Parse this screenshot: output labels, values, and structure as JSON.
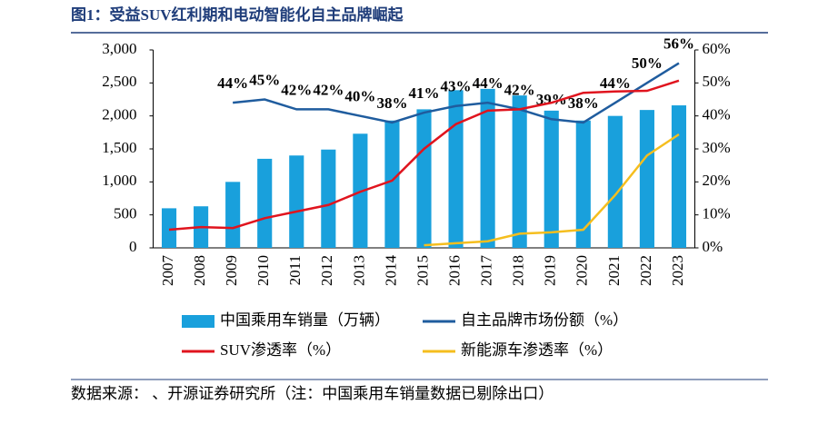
{
  "title": "图1：受益SUV红利期和电动智能化自主品牌崛起",
  "source": "数据来源：      、开源证券研究所（注：中国乘用车销量数据已剔除出口）",
  "chart_data": {
    "type": "bar",
    "categories": [
      "2007",
      "2008",
      "2009",
      "2010",
      "2011",
      "2012",
      "2013",
      "2014",
      "2015",
      "2016",
      "2017",
      "2018",
      "2019",
      "2020",
      "2021",
      "2022",
      "2023"
    ],
    "series": [
      {
        "name": "中国乘用车销量（万辆）",
        "type": "bar",
        "color": "#19a0dc",
        "values": [
          600,
          630,
          1000,
          1350,
          1400,
          1490,
          1730,
          1930,
          2100,
          2390,
          2410,
          2310,
          2080,
          1930,
          2000,
          2090,
          2160
        ]
      },
      {
        "name": "自主品牌市场份额（%）",
        "type": "line",
        "axis": "y2",
        "color": "#1f5c9e",
        "values": [
          null,
          null,
          44,
          45,
          42,
          42,
          40,
          38,
          41,
          43,
          44,
          42,
          39,
          38,
          44,
          50,
          56
        ],
        "value_labels": [
          null,
          null,
          "44%",
          "45%",
          "42%",
          "42%",
          "40%",
          "38%",
          "41%",
          "43%",
          "44%",
          "42%",
          "39%",
          "38%",
          "44%",
          "50%",
          "56%"
        ]
      },
      {
        "name": "SUV渗透率（%）",
        "type": "line",
        "axis": "y2",
        "color": "#e0141e",
        "values": [
          5.5,
          6.3,
          6,
          9,
          11,
          13,
          17,
          20.4,
          30,
          37.5,
          41.6,
          42,
          44,
          47,
          47.4,
          47.6,
          50.7
        ]
      },
      {
        "name": "新能源车渗透率（%）",
        "type": "line",
        "axis": "y2",
        "color": "#f5be1e",
        "values": [
          null,
          null,
          null,
          null,
          null,
          null,
          null,
          null,
          0.8,
          1.4,
          2,
          4.3,
          4.7,
          5.5,
          16,
          28,
          34.4
        ]
      }
    ],
    "ylim": [
      0,
      3000
    ],
    "yticks": [
      0,
      500,
      {
        "value": 1000,
        "label": "1,000"
      },
      {
        "value": 1500,
        "label": "1,500"
      },
      {
        "value": 2000,
        "label": "2,000"
      },
      {
        "value": 2500,
        "label": "2,500"
      },
      {
        "value": 3000,
        "label": "3,000"
      }
    ],
    "y2lim": [
      0,
      60
    ],
    "y2ticks": [
      {
        "value": 0,
        "label": "0%"
      },
      {
        "value": 10,
        "label": "10%"
      },
      {
        "value": 20,
        "label": "20%"
      },
      {
        "value": 30,
        "label": "30%"
      },
      {
        "value": 40,
        "label": "40%"
      },
      {
        "value": 50,
        "label": "50%"
      },
      {
        "value": 60,
        "label": "60%"
      }
    ],
    "grid": false
  }
}
